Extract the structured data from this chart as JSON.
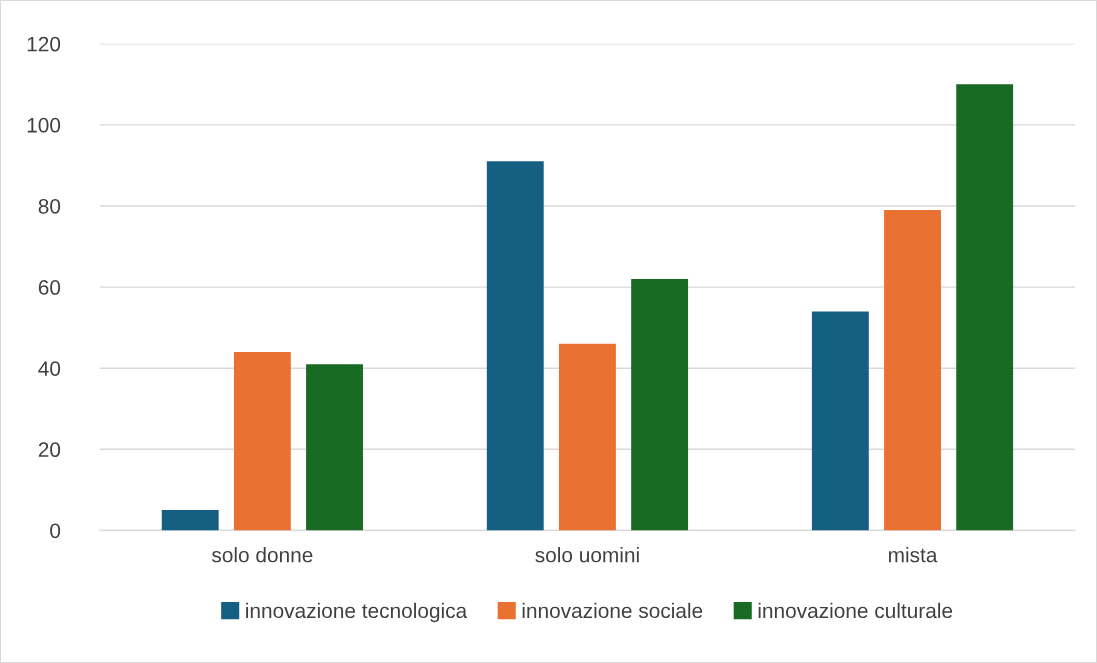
{
  "chart_data": {
    "type": "bar",
    "categories": [
      "solo donne",
      "solo uomini",
      "mista"
    ],
    "series": [
      {
        "name": "innovazione tecnologica",
        "color": "#156082",
        "values": [
          5,
          91,
          54
        ]
      },
      {
        "name": "innovazione sociale",
        "color": "#e97132",
        "values": [
          44,
          46,
          79
        ]
      },
      {
        "name": "innovazione culturale",
        "color": "#196b24",
        "values": [
          41,
          62,
          110
        ]
      }
    ],
    "ylim": [
      0,
      120
    ],
    "yticks": [
      0,
      20,
      40,
      60,
      80,
      100,
      120
    ],
    "grid": "y",
    "legend": "bottom"
  }
}
